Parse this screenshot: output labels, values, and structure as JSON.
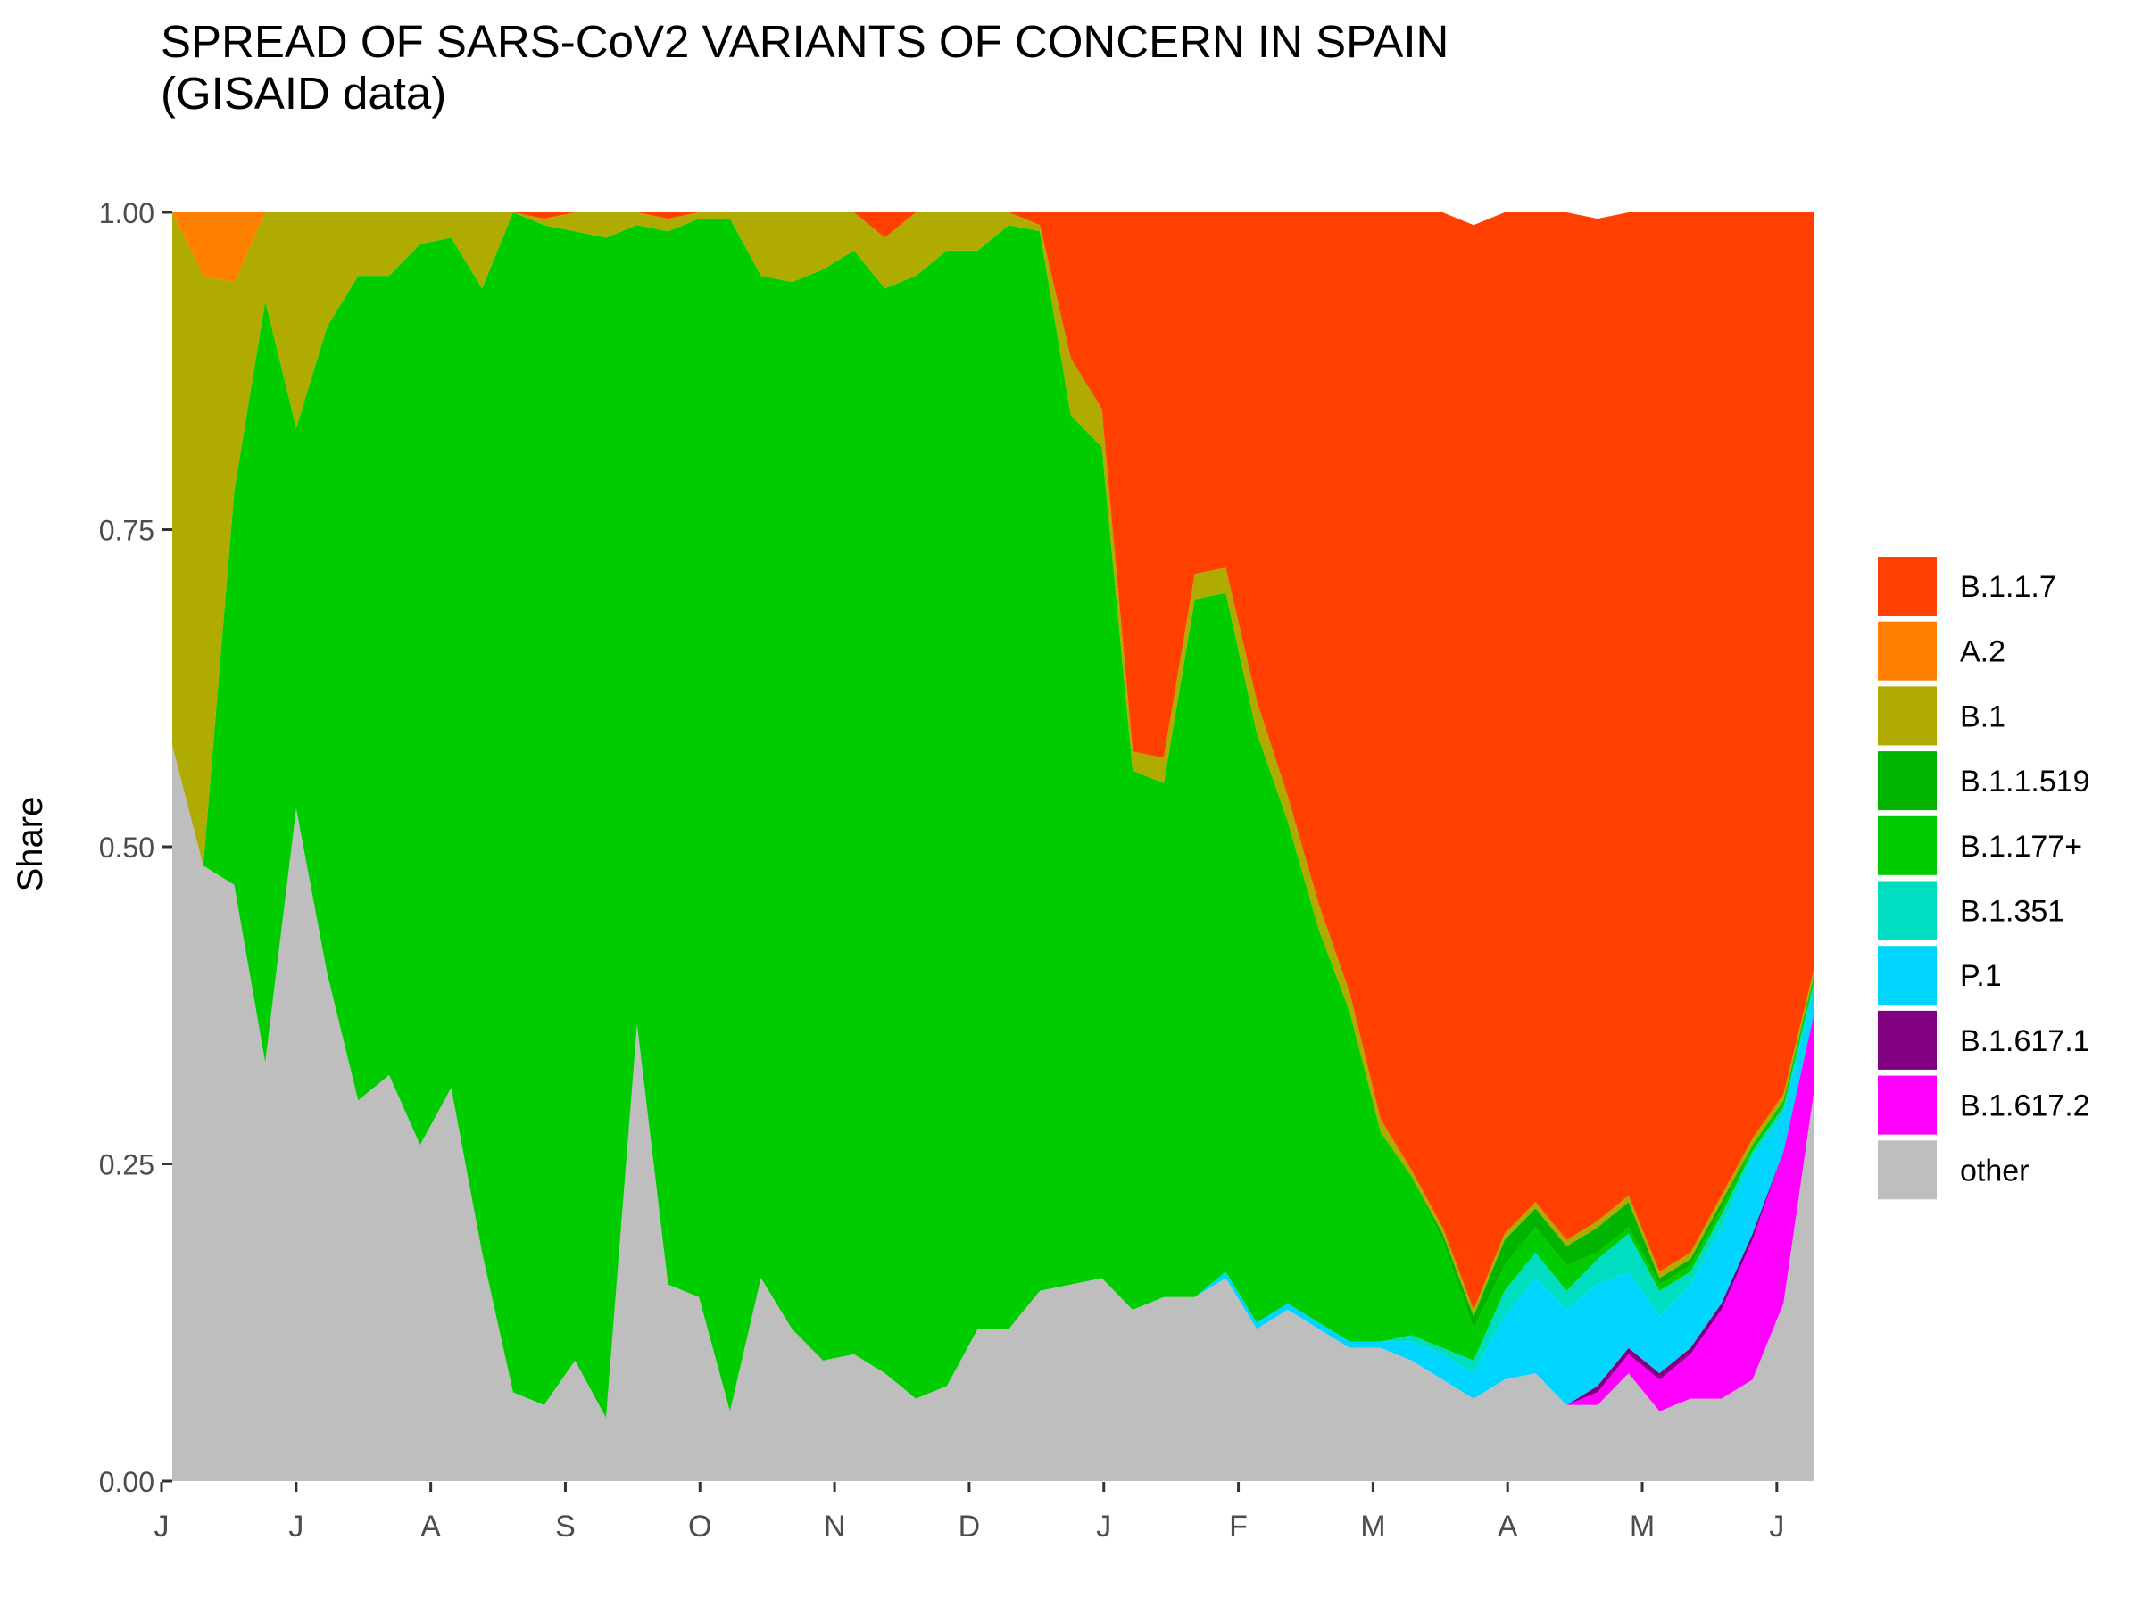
{
  "chart_data": {
    "type": "area",
    "title_line1": "SPREAD OF SARS-CoV2 VARIANTS OF CONCERN IN SPAIN",
    "title_line2": "(GISAID data)",
    "ylabel": "Share",
    "xlabel": "",
    "ylim": [
      0,
      1
    ],
    "yticks": [
      "0.00",
      "0.25",
      "0.50",
      "0.75",
      "1.00"
    ],
    "x_tick_labels": [
      "J",
      "J",
      "A",
      "S",
      "O",
      "N",
      "D",
      "J",
      "F",
      "M",
      "A",
      "M",
      "J"
    ],
    "x_period": "2020-06 to 2021-06 (weekly)",
    "grid": false,
    "stacked": true,
    "legend_position": "right",
    "series": [
      {
        "name": "other",
        "color": "#BEBEBE",
        "values": [
          0.58,
          0.485,
          0.47,
          0.33,
          0.53,
          0.4,
          0.3,
          0.32,
          0.265,
          0.31,
          0.18,
          0.07,
          0.06,
          0.095,
          0.05,
          0.36,
          0.155,
          0.145,
          0.055,
          0.16,
          0.12,
          0.095,
          0.1,
          0.085,
          0.065,
          0.075,
          0.12,
          0.12,
          0.15,
          0.155,
          0.16,
          0.135,
          0.145,
          0.145,
          0.16,
          0.12,
          0.135,
          0.12,
          0.105,
          0.105,
          0.095,
          0.08,
          0.065,
          0.08,
          0.085,
          0.06,
          0.06,
          0.085,
          0.055,
          0.065,
          0.065,
          0.08,
          0.14,
          0.31
        ]
      },
      {
        "name": "B.1.617.2",
        "color": "#FF00FF",
        "values": [
          0,
          0,
          0,
          0,
          0,
          0,
          0,
          0,
          0,
          0,
          0,
          0,
          0,
          0,
          0,
          0,
          0,
          0,
          0,
          0,
          0,
          0,
          0,
          0,
          0,
          0,
          0,
          0,
          0,
          0,
          0,
          0,
          0,
          0,
          0,
          0,
          0,
          0,
          0,
          0,
          0,
          0,
          0,
          0,
          0,
          0,
          0.01,
          0.015,
          0.025,
          0.035,
          0.07,
          0.11,
          0.12,
          0.06
        ]
      },
      {
        "name": "B.1.617.1",
        "color": "#800080",
        "values": [
          0,
          0,
          0,
          0,
          0,
          0,
          0,
          0,
          0,
          0,
          0,
          0,
          0,
          0,
          0,
          0,
          0,
          0,
          0,
          0,
          0,
          0,
          0,
          0,
          0,
          0,
          0,
          0,
          0,
          0,
          0,
          0,
          0,
          0,
          0,
          0,
          0,
          0,
          0,
          0,
          0,
          0,
          0,
          0,
          0,
          0,
          0.005,
          0.005,
          0.005,
          0.005,
          0.005,
          0.005,
          0,
          0
        ]
      },
      {
        "name": "P.1",
        "color": "#00D5FF",
        "values": [
          0,
          0,
          0,
          0,
          0,
          0,
          0,
          0,
          0,
          0,
          0,
          0,
          0,
          0,
          0,
          0,
          0,
          0,
          0,
          0,
          0,
          0,
          0,
          0,
          0,
          0,
          0,
          0,
          0,
          0,
          0,
          0,
          0,
          0,
          0.005,
          0.005,
          0.005,
          0.005,
          0.005,
          0.005,
          0.015,
          0.02,
          0.02,
          0.05,
          0.075,
          0.075,
          0.08,
          0.06,
          0.045,
          0.05,
          0.06,
          0.06,
          0.03,
          0.02
        ]
      },
      {
        "name": "B.1.351",
        "color": "#00DDC0",
        "values": [
          0,
          0,
          0,
          0,
          0,
          0,
          0,
          0,
          0,
          0,
          0,
          0,
          0,
          0,
          0,
          0,
          0,
          0,
          0,
          0,
          0,
          0,
          0,
          0,
          0,
          0,
          0,
          0,
          0,
          0,
          0,
          0,
          0,
          0,
          0,
          0,
          0,
          0,
          0,
          0,
          0.005,
          0.005,
          0.01,
          0.02,
          0.02,
          0.015,
          0.02,
          0.03,
          0.02,
          0.01,
          0.01,
          0.005,
          0.005,
          0.005
        ]
      },
      {
        "name": "B.1.177+",
        "color": "#00CC00",
        "values": [
          0,
          0,
          0.31,
          0.6,
          0.3,
          0.51,
          0.65,
          0.63,
          0.71,
          0.67,
          0.76,
          0.93,
          0.93,
          0.89,
          0.93,
          0.63,
          0.83,
          0.85,
          0.94,
          0.79,
          0.825,
          0.86,
          0.87,
          0.855,
          0.885,
          0.895,
          0.85,
          0.87,
          0.835,
          0.685,
          0.655,
          0.425,
          0.405,
          0.55,
          0.535,
          0.465,
          0.38,
          0.31,
          0.26,
          0.165,
          0.125,
          0.085,
          0.025,
          0.02,
          0.02,
          0.02,
          0.005,
          0.005,
          0.005,
          0.005,
          0.005,
          0.005,
          0.005,
          0.005
        ]
      },
      {
        "name": "B.1.1.519",
        "color": "#00B400",
        "values": [
          0,
          0,
          0,
          0,
          0,
          0,
          0,
          0,
          0,
          0,
          0,
          0,
          0,
          0,
          0,
          0,
          0,
          0,
          0,
          0,
          0,
          0,
          0,
          0,
          0,
          0,
          0,
          0,
          0,
          0,
          0,
          0,
          0,
          0,
          0,
          0,
          0,
          0,
          0,
          0,
          0,
          0.005,
          0.01,
          0.02,
          0.015,
          0.015,
          0.02,
          0.02,
          0.005,
          0.005,
          0.005,
          0,
          0,
          0
        ]
      },
      {
        "name": "B.1",
        "color": "#B0AB00",
        "values": [
          0.42,
          0.465,
          0.165,
          0.07,
          0.17,
          0.09,
          0.05,
          0.05,
          0.025,
          0.02,
          0.06,
          0,
          0.005,
          0.015,
          0.02,
          0.01,
          0.01,
          0.005,
          0.005,
          0.05,
          0.055,
          0.045,
          0.03,
          0.04,
          0.05,
          0.03,
          0.03,
          0.01,
          0.005,
          0.045,
          0.03,
          0.015,
          0.02,
          0.02,
          0.02,
          0.025,
          0.02,
          0.02,
          0.015,
          0.01,
          0.005,
          0.005,
          0.005,
          0.005,
          0.005,
          0.005,
          0.005,
          0.005,
          0.005,
          0.005,
          0.005,
          0.005,
          0.005,
          0.005
        ]
      },
      {
        "name": "A.2",
        "color": "#FF8000",
        "values": [
          0,
          0.05,
          0.055,
          0,
          0,
          0,
          0,
          0.01,
          0,
          0,
          0,
          0,
          0,
          0,
          0,
          0,
          0,
          0,
          0,
          0,
          0,
          0,
          0,
          0,
          0,
          0,
          0,
          0,
          0,
          0,
          0,
          0,
          0,
          0,
          0,
          0,
          0,
          0,
          0,
          0,
          0,
          0,
          0,
          0,
          0,
          0,
          0,
          0,
          0,
          0,
          0,
          0,
          0,
          0
        ]
      },
      {
        "name": "B.1.1.7",
        "color": "#FF4000",
        "values": [
          0,
          0,
          0,
          0,
          0,
          0,
          0,
          0.01,
          0,
          0,
          0,
          0,
          0.005,
          0,
          0,
          0,
          0.005,
          0,
          0,
          0,
          0,
          0,
          0.03,
          0.02,
          0,
          0.005,
          0,
          0,
          0.01,
          0.115,
          0.155,
          0.425,
          0.43,
          0.285,
          0.28,
          0.385,
          0.46,
          0.545,
          0.615,
          0.715,
          0.755,
          0.8,
          0.855,
          0.805,
          0.78,
          0.81,
          0.79,
          0.775,
          0.845,
          0.82,
          0.78,
          0.73,
          0.7,
          0.61
        ]
      }
    ],
    "legend": [
      "B.1.1.7",
      "A.2",
      "B.1",
      "B.1.1.519",
      "B.1.177+",
      "B.1.351",
      "P.1",
      "B.1.617.1",
      "B.1.617.2",
      "other"
    ],
    "colors": {
      "B.1.1.7": "#FF4000",
      "A.2": "#FF8000",
      "B.1": "#B0AB00",
      "B.1.1.519": "#00B400",
      "B.1.177+": "#00CC00",
      "B.1.351": "#00DDC0",
      "P.1": "#00D5FF",
      "B.1.617.1": "#800080",
      "B.1.617.2": "#FF00FF",
      "other": "#BEBEBE",
      "axis_text": "#4d4d4d"
    }
  }
}
